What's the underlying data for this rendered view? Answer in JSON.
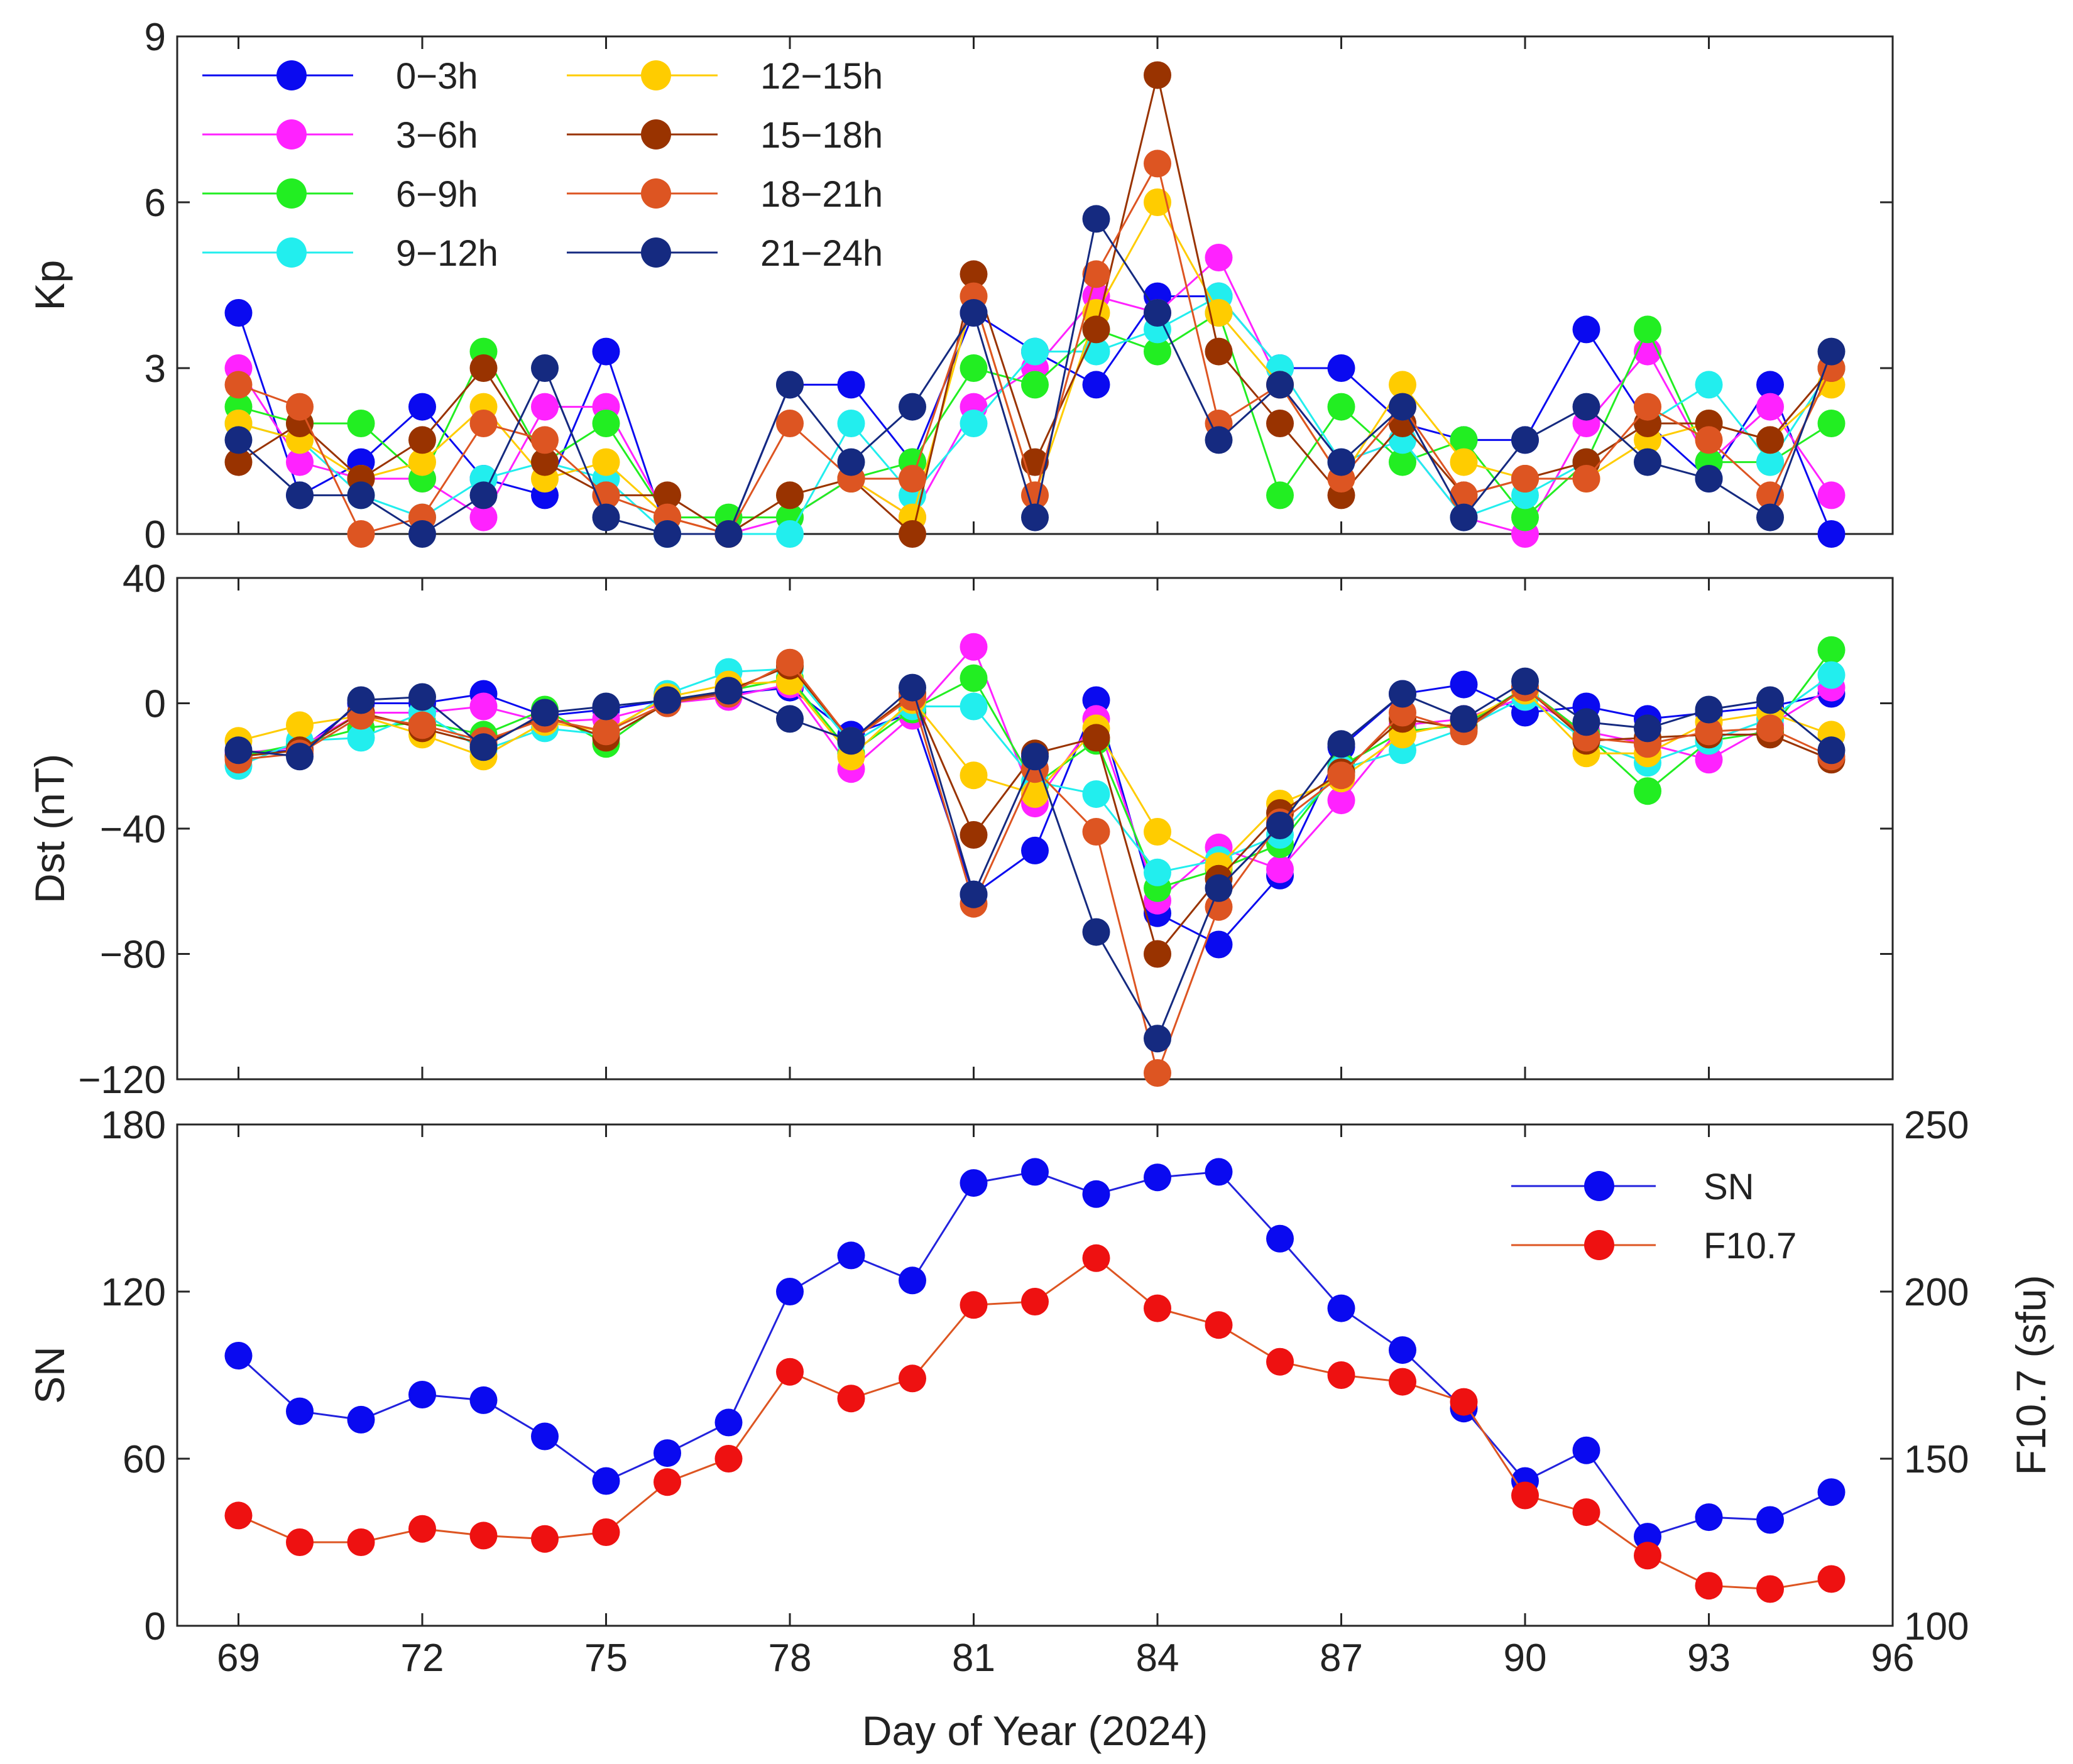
{
  "chart_data": [
    {
      "type": "line",
      "ylabel": "Kp",
      "ylim": [
        0,
        9
      ],
      "yticks": [
        0,
        3,
        6,
        9
      ],
      "xlim": [
        68,
        96
      ],
      "xticks": [
        69,
        72,
        75,
        78,
        81,
        84,
        87,
        90,
        93,
        96
      ],
      "show_x_tick_labels": false,
      "legend": "top-left",
      "x": [
        69,
        70,
        71,
        72,
        73,
        74,
        75,
        76,
        77,
        78,
        79,
        80,
        81,
        82,
        83,
        84,
        85,
        86,
        87,
        88,
        89,
        90,
        91,
        92,
        93,
        94,
        95
      ],
      "series": [
        {
          "name": "0−3h",
          "color": "#0a0af0",
          "values": [
            4.0,
            0.7,
            1.3,
            2.3,
            1.0,
            0.7,
            3.3,
            0.0,
            0.0,
            2.7,
            2.7,
            1.3,
            4.0,
            3.3,
            2.7,
            4.3,
            4.3,
            3.0,
            3.0,
            2.0,
            1.7,
            1.7,
            3.7,
            2.0,
            1.0,
            2.7,
            0.0
          ]
        },
        {
          "name": "3−6h",
          "color": "#ff22ff",
          "values": [
            3.0,
            1.3,
            1.0,
            1.0,
            0.3,
            2.3,
            2.3,
            0.3,
            0.0,
            0.3,
            1.0,
            0.3,
            2.3,
            3.0,
            4.3,
            4.0,
            5.0,
            2.7,
            1.3,
            1.7,
            0.3,
            0.0,
            2.0,
            3.3,
            1.3,
            2.3,
            0.7
          ]
        },
        {
          "name": "6−9h",
          "color": "#22ee22",
          "values": [
            2.3,
            2.0,
            2.0,
            1.0,
            3.3,
            1.3,
            2.0,
            0.3,
            0.3,
            0.3,
            1.0,
            1.3,
            3.0,
            2.7,
            3.7,
            3.3,
            4.0,
            0.7,
            2.3,
            1.3,
            1.7,
            0.3,
            1.3,
            3.7,
            1.3,
            1.3,
            2.0
          ]
        },
        {
          "name": "9−12h",
          "color": "#22eeee",
          "values": [
            2.0,
            1.7,
            0.7,
            0.3,
            1.0,
            1.3,
            1.0,
            0.0,
            0.0,
            0.0,
            2.0,
            0.7,
            2.0,
            3.3,
            3.3,
            3.7,
            4.3,
            3.0,
            1.3,
            1.7,
            0.3,
            0.7,
            1.3,
            2.0,
            2.7,
            1.3,
            3.0
          ]
        },
        {
          "name": "12−15h",
          "color": "#ffcc00",
          "values": [
            2.0,
            1.7,
            1.0,
            1.3,
            2.3,
            1.0,
            1.3,
            0.3,
            0.0,
            0.7,
            1.0,
            0.3,
            4.3,
            0.7,
            4.0,
            6.0,
            4.0,
            2.7,
            1.0,
            2.7,
            1.3,
            1.0,
            1.0,
            1.7,
            2.0,
            1.7,
            2.7
          ]
        },
        {
          "name": "15−18h",
          "color": "#993300",
          "values": [
            1.3,
            2.0,
            1.0,
            1.7,
            3.0,
            1.3,
            0.7,
            0.7,
            0.0,
            0.7,
            1.0,
            0.0,
            4.7,
            1.3,
            3.7,
            8.3,
            3.3,
            2.0,
            0.7,
            2.0,
            0.7,
            1.0,
            1.3,
            2.0,
            2.0,
            1.7,
            3.0
          ]
        },
        {
          "name": "18−21h",
          "color": "#dd5522",
          "values": [
            2.7,
            2.3,
            0.0,
            0.3,
            2.0,
            1.7,
            0.7,
            0.3,
            0.0,
            2.0,
            1.0,
            1.0,
            4.3,
            0.7,
            4.7,
            6.7,
            2.0,
            2.7,
            1.0,
            2.3,
            0.7,
            1.0,
            1.0,
            2.3,
            1.7,
            0.7,
            3.0
          ]
        },
        {
          "name": "21−24h",
          "color": "#152a80",
          "values": [
            1.7,
            0.7,
            0.7,
            0.0,
            0.7,
            3.0,
            0.3,
            0.0,
            0.0,
            2.7,
            1.3,
            2.3,
            4.0,
            0.3,
            5.7,
            4.0,
            1.7,
            2.7,
            1.3,
            2.3,
            0.3,
            1.7,
            2.3,
            1.3,
            1.0,
            0.3,
            3.3
          ]
        }
      ]
    },
    {
      "type": "line",
      "ylabel": "Dst (nT)",
      "ylim": [
        -120,
        40
      ],
      "yticks": [
        -120,
        -80,
        -40,
        0,
        40
      ],
      "xlim": [
        68,
        96
      ],
      "xticks": [
        69,
        72,
        75,
        78,
        81,
        84,
        87,
        90,
        93,
        96
      ],
      "show_x_tick_labels": false,
      "x": [
        69,
        70,
        71,
        72,
        73,
        74,
        75,
        76,
        77,
        78,
        79,
        80,
        81,
        82,
        83,
        84,
        85,
        86,
        87,
        88,
        89,
        90,
        91,
        92,
        93,
        94,
        95
      ],
      "series": [
        {
          "name": "0−3h",
          "color": "#0a0af0",
          "values": [
            -16,
            -15,
            0,
            0,
            3,
            -4,
            -2,
            1,
            3,
            5,
            -10,
            -3,
            -61,
            -47,
            1,
            -67,
            -77,
            -55,
            -14,
            3,
            6,
            -3,
            -1,
            -5,
            -3,
            -1,
            3
          ]
        },
        {
          "name": "3−6h",
          "color": "#ff22ff",
          "values": [
            -16,
            -14,
            -3,
            -3,
            -1,
            -6,
            -5,
            0,
            2,
            6,
            -21,
            -4,
            18,
            -32,
            -5,
            -63,
            -46,
            -53,
            -31,
            -7,
            -5,
            2,
            -9,
            -13,
            -18,
            -7,
            5
          ]
        },
        {
          "name": "6−9h",
          "color": "#22ee22",
          "values": [
            -17,
            -13,
            -8,
            -6,
            -10,
            -2,
            -13,
            1,
            4,
            8,
            -16,
            -2,
            8,
            -26,
            -12,
            -59,
            -53,
            -45,
            -20,
            -9,
            -7,
            5,
            -10,
            -28,
            -12,
            -9,
            17
          ]
        },
        {
          "name": "9−12h",
          "color": "#22eeee",
          "values": [
            -20,
            -12,
            -11,
            -3,
            -15,
            -8,
            -10,
            3,
            10,
            11,
            -13,
            -1,
            -1,
            -25,
            -29,
            -54,
            -50,
            -42,
            -21,
            -15,
            -8,
            2,
            -12,
            -19,
            -12,
            -5,
            9
          ]
        },
        {
          "name": "12−15h",
          "color": "#ffcc00",
          "values": [
            -12,
            -7,
            -4,
            -10,
            -17,
            -6,
            -9,
            2,
            6,
            7,
            -17,
            1,
            -23,
            -29,
            -8,
            -41,
            -52,
            -32,
            -24,
            -10,
            -6,
            4,
            -16,
            -16,
            -6,
            -3,
            -10
          ]
        },
        {
          "name": "15−18h",
          "color": "#993300",
          "values": [
            -17,
            -15,
            -3,
            -8,
            -13,
            -4,
            -11,
            0,
            4,
            12,
            -12,
            3,
            -42,
            -16,
            -11,
            -80,
            -56,
            -35,
            -22,
            -5,
            -8,
            5,
            -12,
            -11,
            -10,
            -10,
            -18
          ]
        },
        {
          "name": "18−21h",
          "color": "#dd5522",
          "values": [
            -18,
            -16,
            -4,
            -7,
            -12,
            -5,
            -9,
            0,
            3,
            13,
            -12,
            2,
            -64,
            -21,
            -41,
            -118,
            -65,
            -38,
            -23,
            -3,
            -9,
            5,
            -11,
            -13,
            -9,
            -8,
            -17
          ]
        },
        {
          "name": "21−24h",
          "color": "#152a80",
          "values": [
            -15,
            -17,
            1,
            2,
            -14,
            -3,
            -1,
            1,
            4,
            -5,
            -12,
            5,
            -61,
            -17,
            -73,
            -107,
            -59,
            -39,
            -13,
            3,
            -5,
            7,
            -6,
            -8,
            -2,
            1,
            -15
          ]
        }
      ]
    },
    {
      "type": "line",
      "ylabel": "SN",
      "y2label": "F10.7 (sfu)",
      "xlabel": "Day of Year (2024)",
      "ylim": [
        0,
        180
      ],
      "yticks": [
        0,
        60,
        120,
        180
      ],
      "y2lim": [
        100,
        250
      ],
      "y2ticks": [
        100,
        150,
        200,
        250
      ],
      "xlim": [
        68,
        96
      ],
      "xticks": [
        69,
        72,
        75,
        78,
        81,
        84,
        87,
        90,
        93,
        96
      ],
      "xtick_labels": [
        "69",
        "72",
        "75",
        "78",
        "81",
        "84",
        "87",
        "90",
        "93",
        "96"
      ],
      "legend": "top-right",
      "x": [
        69,
        70,
        71,
        72,
        73,
        74,
        75,
        76,
        77,
        78,
        79,
        80,
        81,
        82,
        83,
        84,
        85,
        86,
        87,
        88,
        89,
        90,
        91,
        92,
        93,
        94,
        95
      ],
      "series": [
        {
          "name": "SN",
          "axis": "left",
          "color": "#0a0af0",
          "line_color": "#2222dd",
          "values": [
            97,
            77,
            74,
            83,
            81,
            68,
            52,
            62,
            73,
            120,
            133,
            124,
            159,
            163,
            155,
            161,
            163,
            139,
            114,
            99,
            78,
            52,
            63,
            32,
            39,
            38,
            48
          ]
        },
        {
          "name": "F10.7",
          "axis": "right",
          "color": "#ee1111",
          "line_color": "#dd5522",
          "values": [
            133,
            125,
            125,
            129,
            127,
            126,
            128,
            143,
            150,
            176,
            168,
            174,
            196,
            197,
            210,
            195,
            190,
            179,
            175,
            173,
            167,
            139,
            134,
            121,
            112,
            111,
            114
          ]
        }
      ]
    }
  ]
}
